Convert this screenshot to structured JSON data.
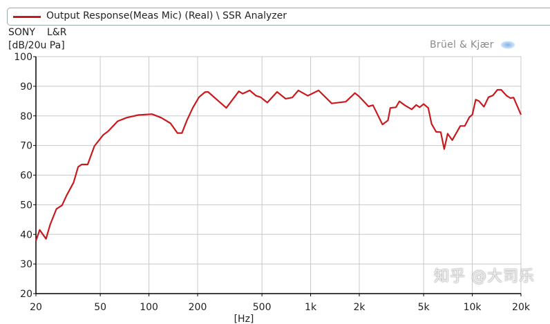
{
  "legend": {
    "label": "Output Response(Meas Mic) (Real) \\ SSR Analyzer",
    "color": "#c8191e"
  },
  "header": {
    "device": "SONY",
    "channel": "L&R",
    "unit": "[dB/20u Pa]",
    "brand": "Brüel & Kjær",
    "brand_icon": "bk-logo-icon"
  },
  "watermark": "知乎 @大司乐",
  "chart_data": {
    "type": "line",
    "title": "",
    "xlabel": "[Hz]",
    "ylabel": "[dB/20u Pa]",
    "xscale": "log",
    "xlim": [
      20,
      20000
    ],
    "ylim": [
      20,
      100
    ],
    "grid": true,
    "legend_position": "top",
    "xticks": [
      20,
      50,
      100,
      200,
      500,
      1000,
      2000,
      5000,
      10000,
      20000
    ],
    "xtick_labels": [
      "20",
      "50",
      "100",
      "200",
      "500",
      "1k",
      "2k",
      "5k",
      "10k",
      "20k"
    ],
    "yticks": [
      20,
      30,
      40,
      50,
      60,
      70,
      80,
      90,
      100
    ],
    "ytick_labels": [
      "20",
      "30",
      "40",
      "50",
      "60",
      "70",
      "80",
      "90",
      "100"
    ],
    "series": [
      {
        "name": "Output Response(Meas Mic) (Real) \\ SSR Analyzer",
        "color": "#c8191e",
        "x": [
          20,
          21.1,
          23.1,
          24.5,
          26.8,
          29,
          31,
          34.2,
          36.5,
          38.4,
          41.8,
          46,
          52.2,
          55.9,
          64,
          72.8,
          86,
          104.5,
          119,
          136,
          150,
          160,
          172,
          187,
          204,
          222,
          232,
          301,
          360,
          380,
          420,
          460,
          490,
          540,
          620,
          700,
          770,
          840,
          960,
          1120,
          1350,
          1650,
          1880,
          2000,
          2280,
          2430,
          2780,
          3010,
          3110,
          3370,
          3540,
          3840,
          4220,
          4500,
          4720,
          5000,
          5340,
          5600,
          5980,
          6380,
          6700,
          7040,
          7510,
          8430,
          8990,
          9600,
          10000,
          10500,
          11000,
          11800,
          12600,
          13400,
          14300,
          15100,
          16300,
          17200,
          18000,
          20000
        ],
        "y": [
          37.8,
          41.5,
          38.5,
          43.3,
          48.6,
          49.8,
          53.2,
          57.5,
          62.8,
          63.6,
          63.6,
          69.8,
          73.6,
          74.8,
          78.2,
          79.4,
          80.3,
          80.6,
          79.4,
          77.5,
          74.2,
          74.2,
          78.6,
          82.8,
          86.3,
          88.0,
          88.1,
          82.7,
          88.3,
          87.5,
          88.6,
          86.8,
          86.3,
          84.5,
          88.1,
          85.8,
          86.2,
          88.6,
          86.8,
          88.6,
          84.2,
          84.8,
          87.7,
          86.5,
          83.2,
          83.6,
          77.1,
          78.5,
          82.7,
          82.9,
          84.9,
          83.5,
          82.2,
          83.7,
          82.9,
          84.0,
          82.7,
          77.3,
          74.6,
          74.5,
          68.8,
          74.0,
          71.8,
          76.6,
          76.6,
          79.6,
          80.4,
          85.5,
          85.0,
          83.1,
          86.3,
          86.9,
          88.8,
          88.8,
          86.8,
          86.0,
          86.2,
          80.4
        ]
      }
    ]
  }
}
